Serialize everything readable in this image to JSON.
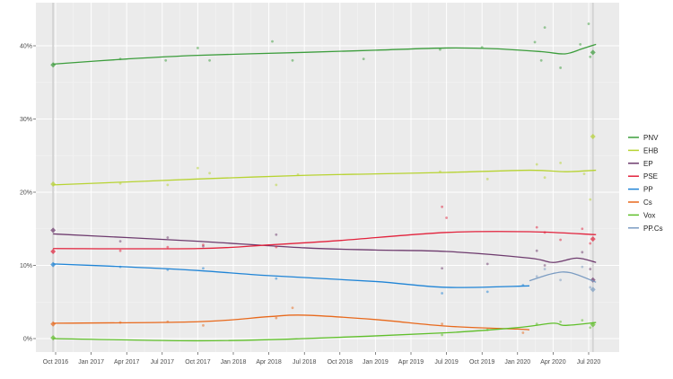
{
  "chart_data": {
    "type": "line",
    "title": "",
    "xlabel": "",
    "ylabel": "",
    "x_ticks": [
      "Oct 2016",
      "Jan 2017",
      "Apr 2017",
      "Jul 2017",
      "Oct 2017",
      "Jan 2018",
      "Apr 2018",
      "Jul 2018",
      "Oct 2018",
      "Jan 2019",
      "Apr 2019",
      "Jul 2019",
      "Oct 2019",
      "Jan 2020",
      "Apr 2020",
      "Jul 2020"
    ],
    "y_ticks": [
      "0%",
      "10%",
      "20%",
      "30%",
      "40%"
    ],
    "ylim": [
      -2,
      45
    ],
    "xlim": [
      "2016-08",
      "2020-09"
    ],
    "grid": true,
    "legend_position": "right",
    "series": [
      {
        "name": "PNV",
        "color": "#3c9d3c",
        "trend": [
          [
            "2016-09-25",
            37.5
          ],
          [
            "2017-04-01",
            38.2
          ],
          [
            "2017-10-01",
            38.7
          ],
          [
            "2018-07-01",
            39.1
          ],
          [
            "2019-01-01",
            39.4
          ],
          [
            "2019-07-01",
            39.7
          ],
          [
            "2019-11-01",
            39.6
          ],
          [
            "2020-03-01",
            39.2
          ],
          [
            "2020-05-01",
            38.9
          ],
          [
            "2020-06-15",
            39.6
          ],
          [
            "2020-07-20",
            40.2
          ]
        ],
        "polls": [
          [
            "2017-03-15",
            38.2
          ],
          [
            "2017-07-10",
            38.0
          ],
          [
            "2017-10-01",
            39.7
          ],
          [
            "2017-11-01",
            38.0
          ],
          [
            "2018-04-10",
            40.6
          ],
          [
            "2018-06-01",
            38.0
          ],
          [
            "2018-12-01",
            38.2
          ],
          [
            "2019-06-15",
            39.5
          ],
          [
            "2019-10-01",
            39.8
          ],
          [
            "2020-02-15",
            40.5
          ],
          [
            "2020-03-01",
            38.0
          ],
          [
            "2020-03-10",
            42.5
          ],
          [
            "2020-04-20",
            37.0
          ],
          [
            "2020-06-10",
            40.2
          ],
          [
            "2020-07-01",
            43.0
          ],
          [
            "2020-07-05",
            38.5
          ]
        ],
        "results": [
          [
            "2016-09-25",
            37.4
          ],
          [
            "2020-07-12",
            39.1
          ]
        ]
      },
      {
        "name": "EHB",
        "color": "#b7d332",
        "trend": [
          [
            "2016-09-25",
            21.0
          ],
          [
            "2017-04-01",
            21.4
          ],
          [
            "2017-10-01",
            21.8
          ],
          [
            "2018-07-01",
            22.3
          ],
          [
            "2019-01-01",
            22.5
          ],
          [
            "2019-07-01",
            22.7
          ],
          [
            "2020-02-01",
            23.0
          ],
          [
            "2020-05-01",
            22.8
          ],
          [
            "2020-07-20",
            23.0
          ]
        ],
        "polls": [
          [
            "2017-03-15",
            21.2
          ],
          [
            "2017-07-15",
            21.0
          ],
          [
            "2017-10-01",
            23.3
          ],
          [
            "2017-11-01",
            22.6
          ],
          [
            "2018-04-20",
            21.0
          ],
          [
            "2018-06-15",
            22.4
          ],
          [
            "2019-06-15",
            22.8
          ],
          [
            "2019-10-15",
            21.8
          ],
          [
            "2020-02-20",
            23.8
          ],
          [
            "2020-03-10",
            22.0
          ],
          [
            "2020-04-20",
            24.0
          ],
          [
            "2020-06-20",
            22.5
          ],
          [
            "2020-07-05",
            19.0
          ]
        ],
        "results": [
          [
            "2016-09-25",
            21.1
          ],
          [
            "2020-07-12",
            27.6
          ]
        ]
      },
      {
        "name": "EP",
        "color": "#6e3b6e",
        "trend": [
          [
            "2016-09-25",
            14.3
          ],
          [
            "2017-04-01",
            13.8
          ],
          [
            "2017-10-01",
            13.3
          ],
          [
            "2018-07-01",
            12.4
          ],
          [
            "2019-01-01",
            12.1
          ],
          [
            "2019-07-01",
            11.9
          ],
          [
            "2020-02-01",
            11.0
          ],
          [
            "2020-04-01",
            10.4
          ],
          [
            "2020-06-01",
            11.0
          ],
          [
            "2020-07-20",
            10.4
          ]
        ],
        "polls": [
          [
            "2017-03-15",
            13.3
          ],
          [
            "2017-07-15",
            13.8
          ],
          [
            "2017-10-15",
            12.6
          ],
          [
            "2018-04-20",
            14.2
          ],
          [
            "2019-06-20",
            9.6
          ],
          [
            "2019-10-15",
            10.2
          ],
          [
            "2020-02-20",
            12.0
          ],
          [
            "2020-03-10",
            10.0
          ],
          [
            "2020-06-15",
            11.8
          ],
          [
            "2020-07-05",
            9.5
          ]
        ],
        "results": [
          [
            "2016-09-25",
            14.8
          ],
          [
            "2020-07-12",
            8.0
          ]
        ]
      },
      {
        "name": "PSE",
        "color": "#e2223c",
        "trend": [
          [
            "2016-09-25",
            12.3
          ],
          [
            "2017-10-01",
            12.3
          ],
          [
            "2018-04-01",
            12.8
          ],
          [
            "2018-10-01",
            13.4
          ],
          [
            "2019-07-01",
            14.5
          ],
          [
            "2020-02-01",
            14.6
          ],
          [
            "2020-07-20",
            14.2
          ]
        ],
        "polls": [
          [
            "2017-03-15",
            12.0
          ],
          [
            "2017-07-15",
            12.5
          ],
          [
            "2017-10-15",
            12.8
          ],
          [
            "2018-04-20",
            12.5
          ],
          [
            "2019-06-20",
            18.0
          ],
          [
            "2019-07-01",
            16.5
          ],
          [
            "2020-02-20",
            15.2
          ],
          [
            "2020-03-10",
            14.5
          ],
          [
            "2020-04-20",
            13.5
          ],
          [
            "2020-06-15",
            15.0
          ],
          [
            "2020-07-05",
            13.0
          ]
        ],
        "results": [
          [
            "2016-09-25",
            11.9
          ],
          [
            "2020-07-12",
            13.6
          ]
        ]
      },
      {
        "name": "PP",
        "color": "#1f84d6",
        "trend": [
          [
            "2016-09-25",
            10.2
          ],
          [
            "2017-04-01",
            9.8
          ],
          [
            "2017-10-01",
            9.3
          ],
          [
            "2018-04-01",
            8.6
          ],
          [
            "2019-01-01",
            7.8
          ],
          [
            "2019-07-01",
            7.0
          ],
          [
            "2020-02-01",
            7.2
          ]
        ],
        "polls": [
          [
            "2017-03-15",
            9.8
          ],
          [
            "2017-07-15",
            9.4
          ],
          [
            "2017-10-15",
            9.6
          ],
          [
            "2018-04-20",
            8.2
          ],
          [
            "2019-06-20",
            6.2
          ],
          [
            "2019-10-15",
            6.4
          ],
          [
            "2020-01-15",
            7.3
          ]
        ],
        "results": [
          [
            "2016-09-25",
            10.1
          ]
        ]
      },
      {
        "name": "Cs",
        "color": "#e8691c",
        "trend": [
          [
            "2016-09-25",
            2.1
          ],
          [
            "2017-10-01",
            2.3
          ],
          [
            "2018-04-01",
            3.0
          ],
          [
            "2018-07-01",
            3.2
          ],
          [
            "2019-01-01",
            2.6
          ],
          [
            "2019-07-01",
            1.7
          ],
          [
            "2020-01-01",
            1.3
          ],
          [
            "2020-02-01",
            1.2
          ]
        ],
        "polls": [
          [
            "2017-03-15",
            2.2
          ],
          [
            "2017-07-15",
            2.3
          ],
          [
            "2017-10-15",
            1.8
          ],
          [
            "2018-04-20",
            2.8
          ],
          [
            "2018-06-01",
            4.2
          ],
          [
            "2019-06-20",
            2.0
          ],
          [
            "2020-01-15",
            0.8
          ]
        ],
        "results": [
          [
            "2016-09-25",
            2.0
          ]
        ]
      },
      {
        "name": "Vox",
        "color": "#5fbf2a",
        "trend": [
          [
            "2016-09-25",
            0.0
          ],
          [
            "2017-10-01",
            -0.3
          ],
          [
            "2018-07-01",
            0.0
          ],
          [
            "2019-07-01",
            0.8
          ],
          [
            "2020-01-01",
            1.5
          ],
          [
            "2020-04-01",
            2.1
          ],
          [
            "2020-05-01",
            1.8
          ],
          [
            "2020-07-20",
            2.2
          ]
        ],
        "polls": [
          [
            "2019-06-20",
            0.5
          ],
          [
            "2019-10-15",
            1.2
          ],
          [
            "2020-02-20",
            2.0
          ],
          [
            "2020-04-20",
            2.3
          ],
          [
            "2020-06-15",
            2.5
          ],
          [
            "2020-07-05",
            1.5
          ]
        ],
        "results": [
          [
            "2016-09-25",
            0.1
          ],
          [
            "2020-07-12",
            1.9
          ]
        ]
      },
      {
        "name": "PP.Cs",
        "color": "#7b9cc2",
        "trend": [
          [
            "2020-02-01",
            7.9
          ],
          [
            "2020-04-01",
            8.9
          ],
          [
            "2020-05-15",
            9.0
          ],
          [
            "2020-07-20",
            7.7
          ]
        ],
        "polls": [
          [
            "2020-02-20",
            8.5
          ],
          [
            "2020-03-10",
            9.5
          ],
          [
            "2020-04-20",
            8.0
          ],
          [
            "2020-06-15",
            9.8
          ],
          [
            "2020-07-05",
            7.0
          ]
        ],
        "results": [
          [
            "2020-07-12",
            6.7
          ]
        ]
      }
    ]
  }
}
